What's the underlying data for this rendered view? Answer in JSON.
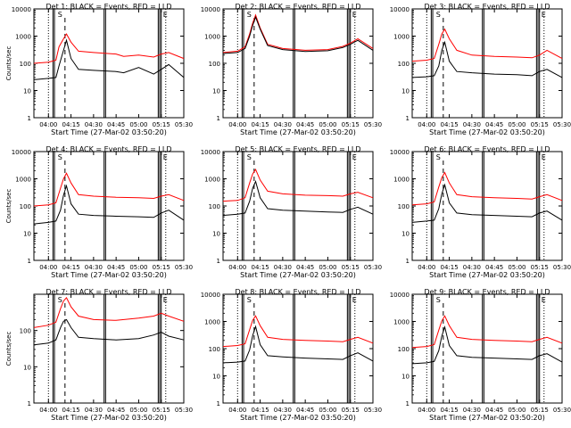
{
  "chart_data": [
    {
      "type": "line",
      "title": "Det 1: BLACK = Events, RED = LLD",
      "xlabel": "Start Time (27-Mar-02 03:50:20)",
      "ylabel": "Counts/sec",
      "yscale": "log",
      "ylim": [
        1,
        10000
      ],
      "ytick_labels": [
        "1",
        "10",
        "100",
        "1000",
        "10000"
      ],
      "xtick_labels": [
        "04:00",
        "04:15",
        "04:30",
        "04:45",
        "05:00",
        "05:15",
        "05:30"
      ],
      "xlim": [
        "03:50:20",
        "05:30"
      ],
      "marker_labels": [
        "S",
        "E"
      ],
      "series": [
        {
          "name": "RED = LLD",
          "color": "#ff0000",
          "x": [
            "03:50:20",
            "04:00",
            "04:05",
            "04:07",
            "04:10",
            "04:12",
            "04:15",
            "04:20",
            "04:30",
            "04:45",
            "04:50",
            "05:00",
            "05:10",
            "05:15",
            "05:20",
            "05:30"
          ],
          "y": [
            100,
            110,
            130,
            400,
            800,
            1200,
            600,
            280,
            250,
            220,
            180,
            200,
            170,
            220,
            250,
            150
          ]
        },
        {
          "name": "BLACK = Events",
          "color": "#000000",
          "x": [
            "03:50:20",
            "04:00",
            "04:05",
            "04:07",
            "04:10",
            "04:12",
            "04:15",
            "04:20",
            "04:30",
            "04:45",
            "04:50",
            "05:00",
            "05:10",
            "05:15",
            "05:20",
            "05:30"
          ],
          "y": [
            25,
            28,
            30,
            80,
            300,
            700,
            150,
            60,
            55,
            50,
            45,
            70,
            40,
            60,
            90,
            30
          ]
        }
      ]
    },
    {
      "type": "line",
      "title": "Det 2: BLACK = Events, RED = LLD",
      "xlabel": "Start Time (27-Mar-02 03:50:20)",
      "ylabel": "",
      "yscale": "log",
      "ylim": [
        1,
        10000
      ],
      "ytick_labels": [
        "1",
        "10",
        "100",
        "1000",
        "10000"
      ],
      "xtick_labels": [
        "04:00",
        "04:15",
        "04:30",
        "04:45",
        "05:00",
        "05:15",
        "05:30"
      ],
      "xlim": [
        "03:50:20",
        "05:30"
      ],
      "marker_labels": [
        "S",
        "E"
      ],
      "series": [
        {
          "name": "RED = LLD",
          "color": "#ff0000",
          "x": [
            "03:50:20",
            "04:00",
            "04:05",
            "04:08",
            "04:10",
            "04:12",
            "04:15",
            "04:20",
            "04:30",
            "04:45",
            "05:00",
            "05:10",
            "05:15",
            "05:20",
            "05:30"
          ],
          "y": [
            250,
            280,
            400,
            1200,
            3000,
            6000,
            2000,
            500,
            350,
            300,
            320,
            420,
            550,
            800,
            350
          ]
        },
        {
          "name": "BLACK = Events",
          "color": "#000000",
          "x": [
            "03:50:20",
            "04:00",
            "04:05",
            "04:08",
            "04:10",
            "04:12",
            "04:15",
            "04:20",
            "04:30",
            "04:45",
            "05:00",
            "05:10",
            "05:15",
            "05:20",
            "05:30"
          ],
          "y": [
            230,
            250,
            350,
            1000,
            2500,
            5000,
            1800,
            450,
            320,
            270,
            290,
            380,
            500,
            700,
            300
          ]
        }
      ]
    },
    {
      "type": "line",
      "title": "Det 3: BLACK = Events, RED = LLD",
      "xlabel": "Start Time (27-Mar-02 03:50:20)",
      "ylabel": "",
      "yscale": "log",
      "ylim": [
        1,
        10000
      ],
      "ytick_labels": [
        "1",
        "10",
        "100",
        "1000",
        "10000"
      ],
      "xtick_labels": [
        "04:00",
        "04:15",
        "04:30",
        "04:45",
        "05:00",
        "05:15",
        "05:30"
      ],
      "xlim": [
        "03:50:20",
        "05:30"
      ],
      "marker_labels": [
        "S",
        "E"
      ],
      "series": [
        {
          "name": "RED = LLD",
          "color": "#ff0000",
          "x": [
            "03:50:20",
            "04:00",
            "04:05",
            "04:08",
            "04:10",
            "04:12",
            "04:15",
            "04:20",
            "04:30",
            "04:45",
            "05:00",
            "05:10",
            "05:15",
            "05:20",
            "05:30"
          ],
          "y": [
            120,
            130,
            150,
            500,
            1200,
            1800,
            800,
            300,
            200,
            180,
            170,
            160,
            200,
            300,
            150
          ]
        },
        {
          "name": "BLACK = Events",
          "color": "#000000",
          "x": [
            "03:50:20",
            "04:00",
            "04:05",
            "04:08",
            "04:10",
            "04:12",
            "04:15",
            "04:20",
            "04:30",
            "04:45",
            "05:00",
            "05:10",
            "05:15",
            "05:20",
            "05:30"
          ],
          "y": [
            30,
            32,
            35,
            80,
            300,
            600,
            120,
            50,
            45,
            40,
            38,
            35,
            50,
            60,
            30
          ]
        }
      ]
    },
    {
      "type": "line",
      "title": "Det 4: BLACK = Events, RED = LLD",
      "xlabel": "Start Time (27-Mar-02 03:50:20)",
      "ylabel": "Counts/sec",
      "yscale": "log",
      "ylim": [
        1,
        10000
      ],
      "ytick_labels": [
        "1",
        "10",
        "100",
        "1000",
        "10000"
      ],
      "xtick_labels": [
        "04:00",
        "04:15",
        "04:30",
        "04:45",
        "05:00",
        "05:15",
        "05:30"
      ],
      "xlim": [
        "03:50:20",
        "05:30"
      ],
      "marker_labels": [
        "S",
        "E"
      ],
      "series": [
        {
          "name": "RED = LLD",
          "color": "#ff0000",
          "x": [
            "03:50:20",
            "04:00",
            "04:05",
            "04:08",
            "04:10",
            "04:12",
            "04:15",
            "04:20",
            "04:30",
            "04:45",
            "05:00",
            "05:10",
            "05:15",
            "05:20",
            "05:30"
          ],
          "y": [
            100,
            110,
            130,
            450,
            1000,
            1600,
            700,
            260,
            230,
            210,
            200,
            190,
            230,
            260,
            160
          ]
        },
        {
          "name": "BLACK = Events",
          "color": "#000000",
          "x": [
            "03:50:20",
            "04:00",
            "04:05",
            "04:08",
            "04:10",
            "04:12",
            "04:15",
            "04:20",
            "04:30",
            "04:45",
            "05:00",
            "05:10",
            "05:15",
            "05:20",
            "05:30"
          ],
          "y": [
            22,
            25,
            28,
            70,
            250,
            550,
            120,
            50,
            45,
            42,
            40,
            38,
            55,
            70,
            30
          ]
        }
      ]
    },
    {
      "type": "line",
      "title": "Det 5: BLACK = Events, RED = LLD",
      "xlabel": "Start Time (27-Mar-02 03:50:20)",
      "ylabel": "",
      "yscale": "log",
      "ylim": [
        1,
        10000
      ],
      "ytick_labels": [
        "1",
        "10",
        "100",
        "1000",
        "10000"
      ],
      "xtick_labels": [
        "04:00",
        "04:15",
        "04:30",
        "04:45",
        "05:00",
        "05:15",
        "05:30"
      ],
      "xlim": [
        "03:50:20",
        "05:30"
      ],
      "marker_labels": [
        "S",
        "E"
      ],
      "series": [
        {
          "name": "RED = LLD",
          "color": "#ff0000",
          "x": [
            "03:50:20",
            "04:00",
            "04:05",
            "04:08",
            "04:10",
            "04:12",
            "04:15",
            "04:20",
            "04:30",
            "04:45",
            "05:00",
            "05:10",
            "05:15",
            "05:20",
            "05:30"
          ],
          "y": [
            150,
            160,
            200,
            700,
            1500,
            2200,
            900,
            350,
            280,
            250,
            240,
            230,
            280,
            320,
            200
          ]
        },
        {
          "name": "BLACK = Events",
          "color": "#000000",
          "x": [
            "03:50:20",
            "04:00",
            "04:05",
            "04:08",
            "04:10",
            "04:12",
            "04:15",
            "04:20",
            "04:30",
            "04:45",
            "05:00",
            "05:10",
            "05:15",
            "05:20",
            "05:30"
          ],
          "y": [
            45,
            50,
            55,
            150,
            450,
            800,
            200,
            80,
            70,
            65,
            60,
            58,
            75,
            90,
            50
          ]
        }
      ]
    },
    {
      "type": "line",
      "title": "Det 6: BLACK = Events, RED = LLD",
      "xlabel": "Start Time (27-Mar-02 03:50:20)",
      "ylabel": "",
      "yscale": "log",
      "ylim": [
        1,
        10000
      ],
      "ytick_labels": [
        "1",
        "10",
        "100",
        "1000",
        "10000"
      ],
      "xtick_labels": [
        "04:00",
        "04:15",
        "04:30",
        "04:45",
        "05:00",
        "05:15",
        "05:30"
      ],
      "xlim": [
        "03:50:20",
        "05:30"
      ],
      "marker_labels": [
        "S",
        "E"
      ],
      "series": [
        {
          "name": "RED = LLD",
          "color": "#ff0000",
          "x": [
            "03:50:20",
            "04:00",
            "04:05",
            "04:08",
            "04:10",
            "04:12",
            "04:15",
            "04:20",
            "04:30",
            "04:45",
            "05:00",
            "05:10",
            "05:15",
            "05:20",
            "05:30"
          ],
          "y": [
            110,
            120,
            140,
            500,
            1100,
            1700,
            700,
            260,
            220,
            200,
            190,
            180,
            220,
            260,
            160
          ]
        },
        {
          "name": "BLACK = Events",
          "color": "#000000",
          "x": [
            "03:50:20",
            "04:00",
            "04:05",
            "04:08",
            "04:10",
            "04:12",
            "04:15",
            "04:20",
            "04:30",
            "04:45",
            "05:00",
            "05:10",
            "05:15",
            "05:20",
            "05:30"
          ],
          "y": [
            25,
            28,
            30,
            80,
            280,
            600,
            130,
            55,
            48,
            45,
            42,
            40,
            55,
            65,
            30
          ]
        }
      ]
    },
    {
      "type": "line",
      "title": "Det 7: BLACK = Events, RED = LLD",
      "xlabel": "Start Time (27-Mar-02 03:50:20)",
      "ylabel": "Counts/sec",
      "yscale": "log",
      "ylim": [
        1,
        1000
      ],
      "ytick_labels": [
        "1",
        "10",
        "100"
      ],
      "xtick_labels": [
        "04:00",
        "04:15",
        "04:30",
        "04:45",
        "05:00",
        "05:15",
        "05:30"
      ],
      "xlim": [
        "03:50:20",
        "05:30"
      ],
      "marker_labels": [
        "S",
        "E"
      ],
      "series": [
        {
          "name": "RED = LLD",
          "color": "#ff0000",
          "x": [
            "03:50:20",
            "04:00",
            "04:05",
            "04:08",
            "04:10",
            "04:12",
            "04:15",
            "04:20",
            "04:30",
            "04:45",
            "05:00",
            "05:10",
            "05:15",
            "05:20",
            "05:30"
          ],
          "y": [
            120,
            140,
            170,
            400,
            650,
            800,
            450,
            250,
            200,
            190,
            220,
            250,
            300,
            250,
            180
          ]
        },
        {
          "name": "BLACK = Events",
          "color": "#000000",
          "x": [
            "03:50:20",
            "04:00",
            "04:05",
            "04:08",
            "04:10",
            "04:12",
            "04:15",
            "04:20",
            "04:30",
            "04:45",
            "05:00",
            "05:10",
            "05:15",
            "05:20",
            "05:30"
          ],
          "y": [
            40,
            45,
            55,
            120,
            180,
            200,
            120,
            65,
            60,
            55,
            60,
            75,
            90,
            70,
            55
          ]
        }
      ]
    },
    {
      "type": "line",
      "title": "Det 8: BLACK = Events, RED = LLD",
      "xlabel": "Start Time (27-Mar-02 03:50:20)",
      "ylabel": "",
      "yscale": "log",
      "ylim": [
        1,
        10000
      ],
      "ytick_labels": [
        "1",
        "10",
        "100",
        "1000",
        "10000"
      ],
      "xtick_labels": [
        "04:00",
        "04:15",
        "04:30",
        "04:45",
        "05:00",
        "05:15",
        "05:30"
      ],
      "xlim": [
        "03:50:20",
        "05:30"
      ],
      "marker_labels": [
        "S",
        "E"
      ],
      "series": [
        {
          "name": "RED = LLD",
          "color": "#ff0000",
          "x": [
            "03:50:20",
            "04:00",
            "04:05",
            "04:08",
            "04:10",
            "04:12",
            "04:15",
            "04:20",
            "04:30",
            "04:45",
            "05:00",
            "05:10",
            "05:15",
            "05:20",
            "05:30"
          ],
          "y": [
            120,
            130,
            150,
            500,
            1100,
            1600,
            700,
            260,
            220,
            200,
            190,
            180,
            220,
            260,
            160
          ]
        },
        {
          "name": "BLACK = Events",
          "color": "#000000",
          "x": [
            "03:50:20",
            "04:00",
            "04:05",
            "04:08",
            "04:10",
            "04:12",
            "04:15",
            "04:20",
            "04:30",
            "04:45",
            "05:00",
            "05:10",
            "05:15",
            "05:20",
            "05:30"
          ],
          "y": [
            30,
            32,
            35,
            90,
            300,
            650,
            140,
            55,
            50,
            45,
            42,
            40,
            55,
            70,
            35
          ]
        }
      ]
    },
    {
      "type": "line",
      "title": "Det 9: BLACK = Events, RED = LLD",
      "xlabel": "Start Time (27-Mar-02 03:50:20)",
      "ylabel": "",
      "yscale": "log",
      "ylim": [
        1,
        10000
      ],
      "ytick_labels": [
        "1",
        "10",
        "100",
        "1000",
        "10000"
      ],
      "xtick_labels": [
        "04:00",
        "04:15",
        "04:30",
        "04:45",
        "05:00",
        "05:15",
        "05:30"
      ],
      "xlim": [
        "03:50:20",
        "05:30"
      ],
      "marker_labels": [
        "S",
        "E"
      ],
      "series": [
        {
          "name": "RED = LLD",
          "color": "#ff0000",
          "x": [
            "03:50:20",
            "04:00",
            "04:05",
            "04:08",
            "04:10",
            "04:12",
            "04:15",
            "04:20",
            "04:30",
            "04:45",
            "05:00",
            "05:10",
            "05:15",
            "05:20",
            "05:30"
          ],
          "y": [
            110,
            120,
            140,
            480,
            1050,
            1600,
            700,
            260,
            220,
            200,
            190,
            180,
            220,
            260,
            160
          ]
        },
        {
          "name": "BLACK = Events",
          "color": "#000000",
          "x": [
            "03:50:20",
            "04:00",
            "04:05",
            "04:08",
            "04:10",
            "04:12",
            "04:15",
            "04:20",
            "04:30",
            "04:45",
            "05:00",
            "05:10",
            "05:15",
            "05:20",
            "05:30"
          ],
          "y": [
            28,
            30,
            34,
            85,
            290,
            620,
            130,
            55,
            48,
            45,
            42,
            40,
            55,
            65,
            32
          ]
        }
      ]
    }
  ]
}
